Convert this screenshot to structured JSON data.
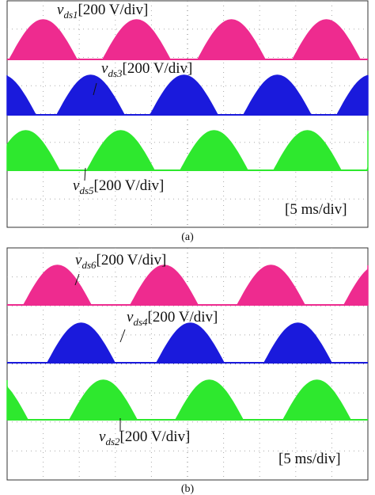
{
  "panels": [
    {
      "caption": "(a)",
      "timebase": "[5 ms/div]",
      "labels": [
        {
          "symbol": "v",
          "sub": "ds1",
          "scale": "[200 V/div]"
        },
        {
          "symbol": "v",
          "sub": "ds3",
          "scale": "[200 V/div]"
        },
        {
          "symbol": "v",
          "sub": "ds5",
          "scale": "[200 V/div]"
        }
      ]
    },
    {
      "caption": "(b)",
      "timebase": "[5 ms/div]",
      "labels": [
        {
          "symbol": "v",
          "sub": "ds6",
          "scale": "[200 V/div]"
        },
        {
          "symbol": "v",
          "sub": "ds4",
          "scale": "[200 V/div]"
        },
        {
          "symbol": "v",
          "sub": "ds2",
          "scale": "[200 V/div]"
        }
      ]
    }
  ]
}
